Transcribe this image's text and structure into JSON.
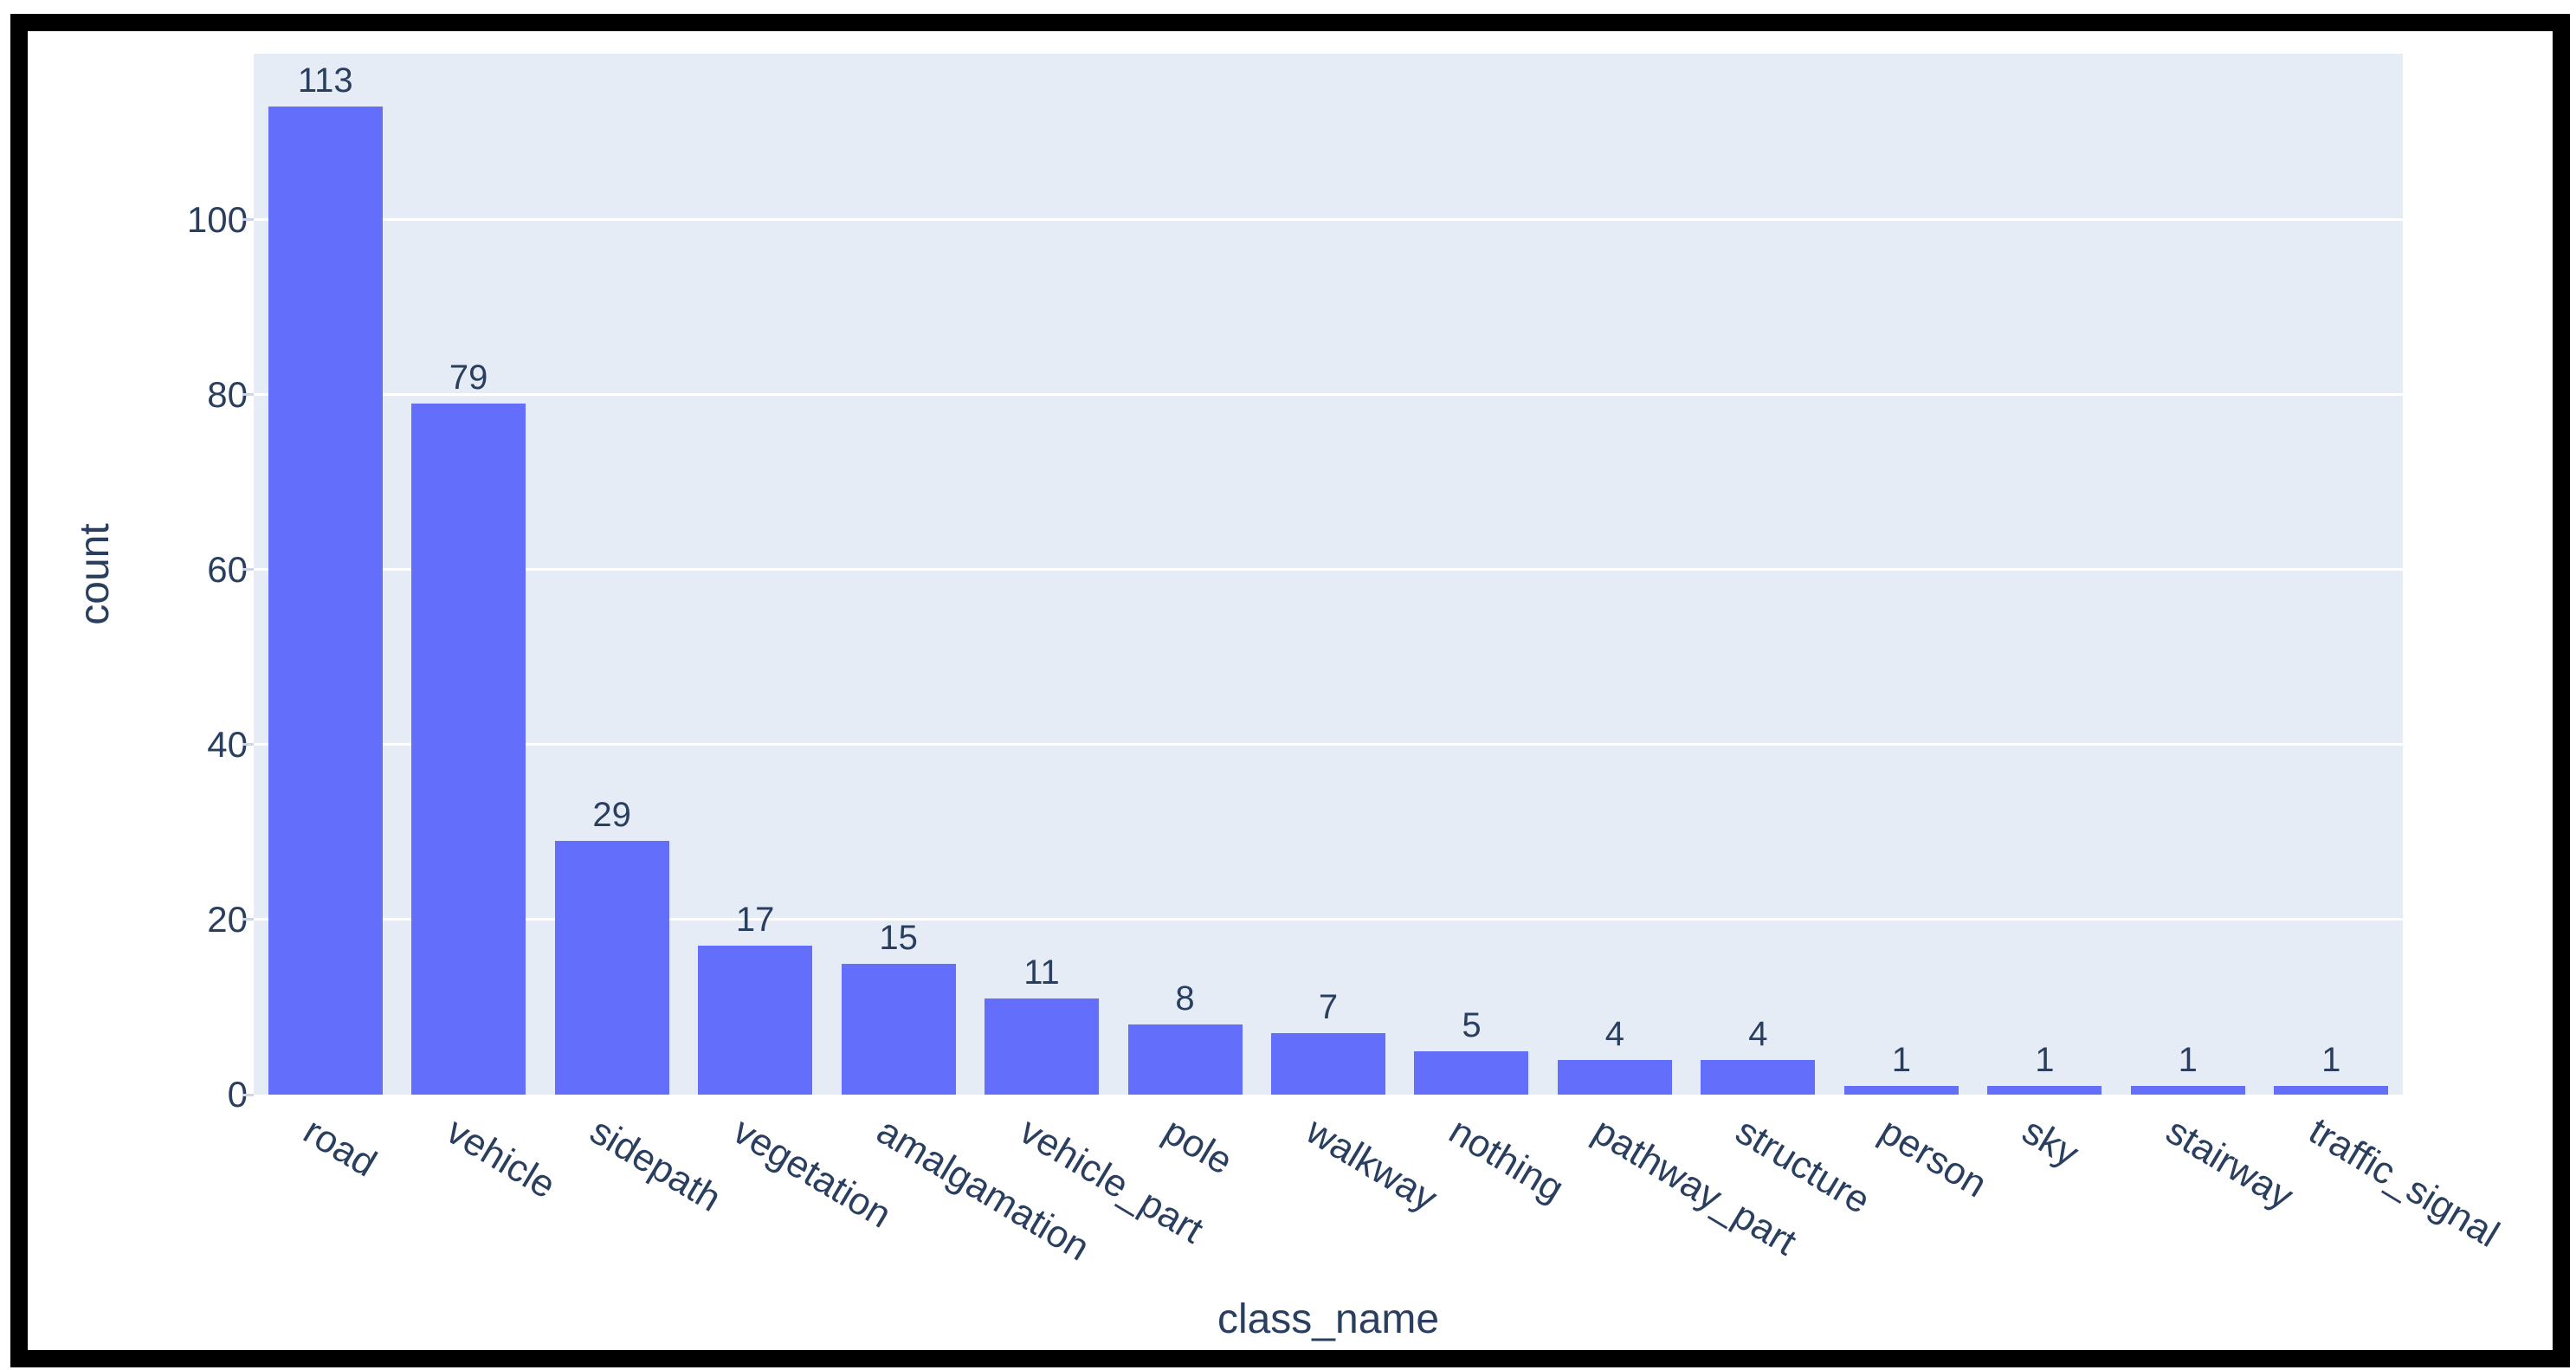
{
  "chart_data": {
    "type": "bar",
    "title": "",
    "xlabel": "class_name",
    "ylabel": "count",
    "categories": [
      "road",
      "vehicle",
      "sidepath",
      "vegetation",
      "amalgamation",
      "vehicle_part",
      "pole",
      "walkway",
      "nothing",
      "pathway_part",
      "structure",
      "person",
      "sky",
      "stairway",
      "traffic_signal"
    ],
    "values": [
      113,
      79,
      29,
      17,
      15,
      11,
      8,
      7,
      5,
      4,
      4,
      1,
      1,
      1,
      1
    ],
    "yticks": [
      0,
      20,
      40,
      60,
      80,
      100
    ],
    "ylim": [
      0,
      119
    ],
    "grid": "horizontal",
    "legend_position": "none",
    "value_labels_position": "above bars",
    "xtick_angle_deg": 31,
    "colors": {
      "bar": "#636EFA",
      "plot_background": "#E5ECF6",
      "gridline": "#FFFFFF",
      "text": "#2A3F5F",
      "outer_border": "#000000"
    }
  }
}
